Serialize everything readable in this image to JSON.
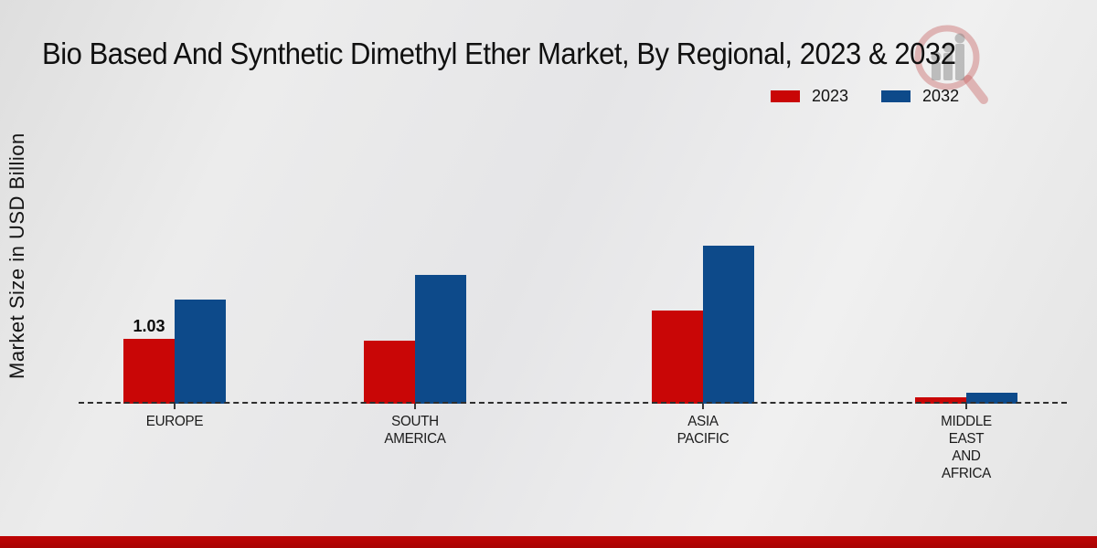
{
  "title": "Bio Based And Synthetic Dimethyl Ether Market, By Regional, 2023 & 2032",
  "ylabel": "Market Size in USD Billion",
  "legend": {
    "items": [
      {
        "label": "2023",
        "color": "#c90606"
      },
      {
        "label": "2032",
        "color": "#0d4a8a"
      }
    ]
  },
  "watermark": {
    "name": "magnifier-bar-chart-logo"
  },
  "footer": {
    "bar_color": "#b20404"
  },
  "chart_data": {
    "type": "bar",
    "title": "Bio Based And Synthetic Dimethyl Ether Market, By Regional, 2023 & 2032",
    "xlabel": "",
    "ylabel": "Market Size in USD Billion",
    "categories": [
      "EUROPE",
      "SOUTH AMERICA",
      "ASIA PACIFIC",
      "MIDDLE EAST AND AFRICA"
    ],
    "category_label_lines": [
      [
        "EUROPE"
      ],
      [
        "SOUTH",
        "AMERICA"
      ],
      [
        "ASIA",
        "PACIFIC"
      ],
      [
        "MIDDLE",
        "EAST",
        "AND",
        "AFRICA"
      ]
    ],
    "series": [
      {
        "name": "2023",
        "color": "#c90606",
        "values": [
          1.03,
          1.0,
          1.48,
          0.1
        ]
      },
      {
        "name": "2032",
        "color": "#0d4a8a",
        "values": [
          1.66,
          2.04,
          2.51,
          0.17
        ]
      }
    ],
    "data_labels": [
      {
        "series_index": 0,
        "category_index": 0,
        "text": "1.03"
      }
    ],
    "ylim": [
      0,
      2.9
    ],
    "grid": false,
    "legend_position": "top-right",
    "baseline_style": "dashed",
    "y_axis_ticks_visible": false
  }
}
